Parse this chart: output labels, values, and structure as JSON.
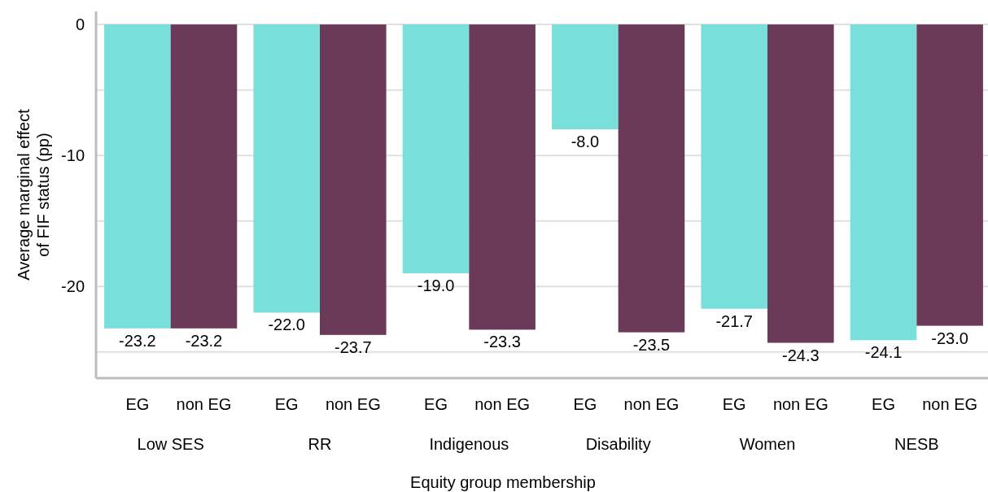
{
  "chart_data": {
    "type": "bar",
    "xlabel": "Equity group membership",
    "ylabel": "Average marginal effect of FIF status (pp)",
    "categories": [
      "EG",
      "non EG",
      "EG",
      "non EG",
      "EG",
      "non EG",
      "EG",
      "non EG",
      "EG",
      "non EG",
      "EG",
      "non EG"
    ],
    "values": [
      -23.2,
      -23.2,
      -22.0,
      -23.7,
      -19.0,
      -23.3,
      -8.0,
      -23.5,
      -21.7,
      -24.3,
      -24.1,
      -23.0
    ],
    "value_labels": [
      "-23.2",
      "-23.2",
      "-22.0",
      "-23.7",
      "-19.0",
      "-23.3",
      "-8.0",
      "-23.5",
      "-21.7",
      "-24.3",
      "-24.1",
      "-23.0"
    ],
    "colors": [
      "#78dfda",
      "#6b3a58",
      "#78dfda",
      "#6b3a58",
      "#78dfda",
      "#6b3a58",
      "#78dfda",
      "#6b3a58",
      "#78dfda",
      "#6b3a58",
      "#78dfda",
      "#6b3a58"
    ],
    "annotations": [
      "Low SES",
      "RR",
      "Indigenous",
      "Disability",
      "Women",
      "NESB"
    ],
    "ylim": [
      -27,
      1
    ],
    "yticks": [
      0,
      {
        "value": -5,
        "label": null
      },
      -10,
      {
        "value": -15,
        "label": null
      },
      -20,
      {
        "value": -25,
        "label": null
      }
    ],
    "grid": "y"
  }
}
